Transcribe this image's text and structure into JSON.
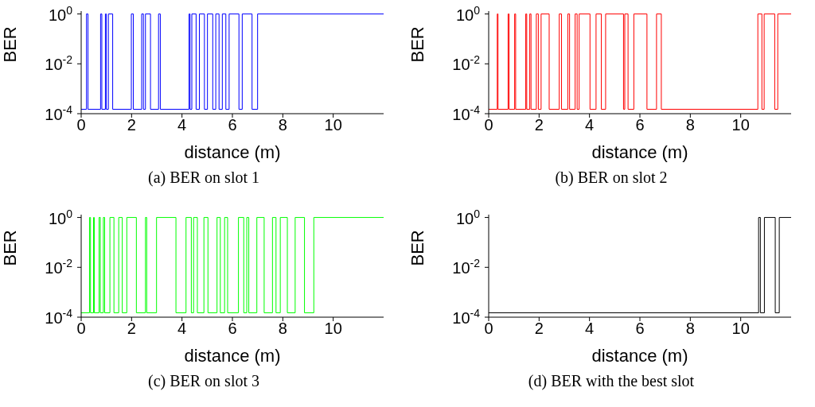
{
  "chart_data": [
    {
      "type": "step",
      "title": "(a) BER on slot 1",
      "xlabel": "distance (m)",
      "ylabel": "BER",
      "log": "y",
      "xlim": [
        0,
        12
      ],
      "xticks": [
        0,
        2,
        4,
        6,
        8,
        10
      ],
      "ylim": [
        0.0001,
        1.3
      ],
      "yticks": [
        {
          "value": 0.0001,
          "label": "10$^{-4}$"
        },
        {
          "value": 0.01,
          "label": "10$^{-2}$"
        },
        {
          "value": 1,
          "label": "10$^{0}$"
        }
      ],
      "series": [
        {
          "color": "#0000ff",
          "x": [
            0,
            0.21,
            0.27,
            0.77,
            0.82,
            0.96,
            1.0,
            1.08,
            1.25,
            1.99,
            2.07,
            2.4,
            2.47,
            2.55,
            2.75,
            3.07,
            3.14,
            4.28,
            4.32,
            4.39,
            4.56,
            4.69,
            4.89,
            5.01,
            5.22,
            5.34,
            5.47,
            5.6,
            5.74,
            5.87,
            6.26,
            6.39,
            6.78,
            7.0,
            12
          ],
          "values": [
            0.00015,
            1,
            0.00015,
            1,
            0.00015,
            1,
            0.00015,
            1,
            0.00015,
            1,
            0.00015,
            1,
            0.00015,
            1,
            0.00015,
            1,
            0.00015,
            1,
            0.00015,
            1,
            0.00015,
            1,
            0.00015,
            1,
            0.00015,
            1,
            0.00015,
            1,
            0.00015,
            1,
            0.00015,
            1,
            0.00015,
            1,
            1
          ]
        }
      ]
    },
    {
      "type": "step",
      "title": "(b) BER on slot 2",
      "xlabel": "distance (m)",
      "ylabel": "BER",
      "log": "y",
      "xlim": [
        0,
        12
      ],
      "xticks": [
        0,
        2,
        4,
        6,
        8,
        10
      ],
      "ylim": [
        0.0001,
        1.3
      ],
      "yticks": [
        {
          "value": 0.0001,
          "label": "10$^{-4}$"
        },
        {
          "value": 0.01,
          "label": "10$^{-2}$"
        },
        {
          "value": 1,
          "label": "10$^{0}$"
        }
      ],
      "series": [
        {
          "color": "#ff0000",
          "x": [
            0,
            0.34,
            0.37,
            0.77,
            0.81,
            1.03,
            1.07,
            1.47,
            1.51,
            1.63,
            1.68,
            1.89,
            1.97,
            2.08,
            2.4,
            2.8,
            2.89,
            3.14,
            3.21,
            3.43,
            3.51,
            3.59,
            4.02,
            4.26,
            4.47,
            4.64,
            5.35,
            5.4,
            5.53,
            5.76,
            6.28,
            6.66,
            6.85,
            10.68,
            10.84,
            10.93,
            11.35,
            11.47,
            12
          ],
          "values": [
            0.00015,
            1,
            0.00015,
            1,
            0.00015,
            1,
            0.00015,
            1,
            0.00015,
            1,
            0.00015,
            1,
            0.00015,
            1,
            0.00015,
            1,
            0.00015,
            1,
            0.00015,
            1,
            0.00015,
            1,
            0.00015,
            1,
            0.00015,
            1,
            0.00015,
            1,
            0.00015,
            1,
            0.00015,
            1,
            0.00015,
            1,
            0.00015,
            1,
            0.00015,
            1,
            1
          ]
        }
      ]
    },
    {
      "type": "step",
      "title": "(c) BER on slot 3",
      "xlabel": "distance (m)",
      "ylabel": "BER",
      "log": "y",
      "xlim": [
        0,
        12
      ],
      "xticks": [
        0,
        2,
        4,
        6,
        8,
        10
      ],
      "ylim": [
        0.0001,
        1.3
      ],
      "yticks": [
        {
          "value": 0.0001,
          "label": "10$^{-4}$"
        },
        {
          "value": 0.01,
          "label": "10$^{-2}$"
        },
        {
          "value": 1,
          "label": "10$^{0}$"
        }
      ],
      "series": [
        {
          "color": "#00ff00",
          "x": [
            0,
            0.33,
            0.37,
            0.49,
            0.52,
            0.71,
            0.76,
            0.88,
            0.93,
            1.14,
            1.3,
            1.49,
            1.63,
            1.81,
            2.19,
            2.55,
            2.6,
            2.99,
            3.76,
            4.16,
            4.37,
            4.46,
            4.61,
            4.87,
            5.03,
            5.39,
            5.52,
            5.69,
            5.81,
            6.24,
            6.45,
            6.57,
            6.65,
            6.97,
            7.26,
            7.59,
            7.73,
            7.9,
            8.18,
            8.49,
            8.86,
            9.23,
            12
          ],
          "values": [
            0.00015,
            1,
            0.00015,
            1,
            0.00015,
            1,
            0.00015,
            1,
            0.00015,
            1,
            0.00015,
            1,
            0.00015,
            1,
            0.00015,
            1,
            0.00015,
            1,
            0.00015,
            1,
            0.00015,
            1,
            0.00015,
            1,
            0.00015,
            1,
            0.00015,
            1,
            0.00015,
            1,
            0.00015,
            1,
            0.00015,
            1,
            0.00015,
            1,
            0.00015,
            1,
            0.00015,
            1,
            0.00015,
            1,
            1
          ]
        }
      ]
    },
    {
      "type": "step",
      "title": "(d) BER with the best slot",
      "xlabel": "distance (m)",
      "ylabel": "BER",
      "log": "y",
      "xlim": [
        0,
        12
      ],
      "xticks": [
        0,
        2,
        4,
        6,
        8,
        10
      ],
      "ylim": [
        0.0001,
        1.3
      ],
      "yticks": [
        {
          "value": 0.0001,
          "label": "10$^{-4}$"
        },
        {
          "value": 0.01,
          "label": "10$^{-2}$"
        },
        {
          "value": 1,
          "label": "10$^{0}$"
        }
      ],
      "series": [
        {
          "color": "#000000",
          "x": [
            0,
            10.71,
            10.78,
            10.94,
            11.37,
            11.53,
            12
          ],
          "values": [
            0.00015,
            1,
            0.00015,
            1,
            0.00015,
            1,
            1
          ]
        }
      ]
    }
  ]
}
